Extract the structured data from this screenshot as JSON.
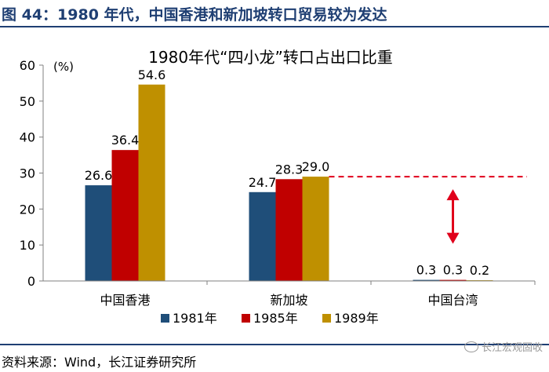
{
  "figure_title": "图 44：1980 年代，中国香港和新加坡转口贸易较为发达",
  "source": "资料来源：Wind，长江证券研究所",
  "watermark": "长江宏观固收",
  "colors": {
    "brand": "#1f3f73",
    "s1981": "#1f4e79",
    "s1985": "#c00000",
    "s1989": "#bf9000",
    "ref_line": "#e0001b"
  },
  "chart_data": {
    "type": "bar",
    "title": "1980年代“四小龙”转口占出口比重",
    "ylabel": "(%)",
    "ylim": [
      0,
      60
    ],
    "yticks": [
      0,
      10,
      20,
      30,
      40,
      50,
      60
    ],
    "categories": [
      "中国香港",
      "新加坡",
      "中国台湾"
    ],
    "series": [
      {
        "name": "1981年",
        "values": [
          26.6,
          24.7,
          0.3
        ],
        "labels": [
          "26.6",
          "24.7",
          "0.3"
        ]
      },
      {
        "name": "1985年",
        "values": [
          36.4,
          28.3,
          0.3
        ],
        "labels": [
          "36.4",
          "28.3",
          "0.3"
        ]
      },
      {
        "name": "1989年",
        "values": [
          54.6,
          29.0,
          0.2
        ],
        "labels": [
          "54.6",
          "29.0",
          "0.2"
        ]
      }
    ],
    "reference_line": {
      "value": 29.0,
      "style": "dashed"
    },
    "annotation": "double-headed-arrow",
    "legend": "bottom-center",
    "grid": false
  }
}
